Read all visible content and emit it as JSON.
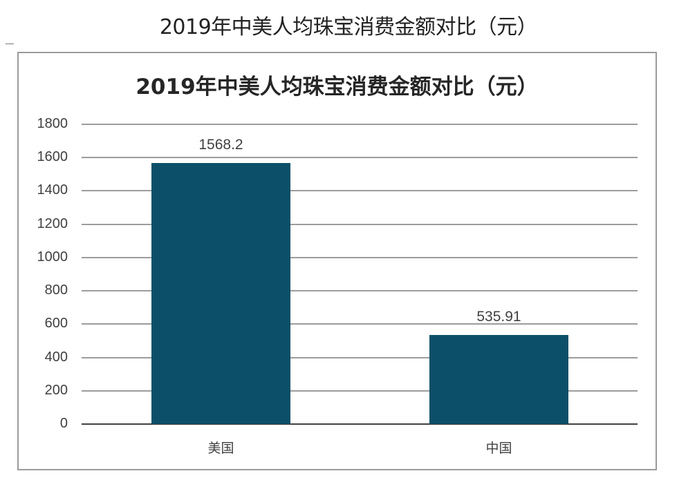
{
  "page": {
    "title": "2019年中美人均珠宝消费金额对比（元）"
  },
  "chart_data": {
    "type": "bar",
    "title": "2019年中美人均珠宝消费金额对比（元）",
    "xlabel": "",
    "ylabel": "",
    "categories": [
      "美国",
      "中国"
    ],
    "values": [
      1568.2,
      535.91
    ],
    "data_labels": [
      "1568.2",
      "535.91"
    ],
    "ylim": [
      0,
      1800
    ],
    "yticks": [
      "0",
      "200",
      "400",
      "600",
      "800",
      "1000",
      "1200",
      "1400",
      "1600",
      "1800"
    ],
    "grid": true,
    "legend": null,
    "bar_color": "#0b5068"
  }
}
